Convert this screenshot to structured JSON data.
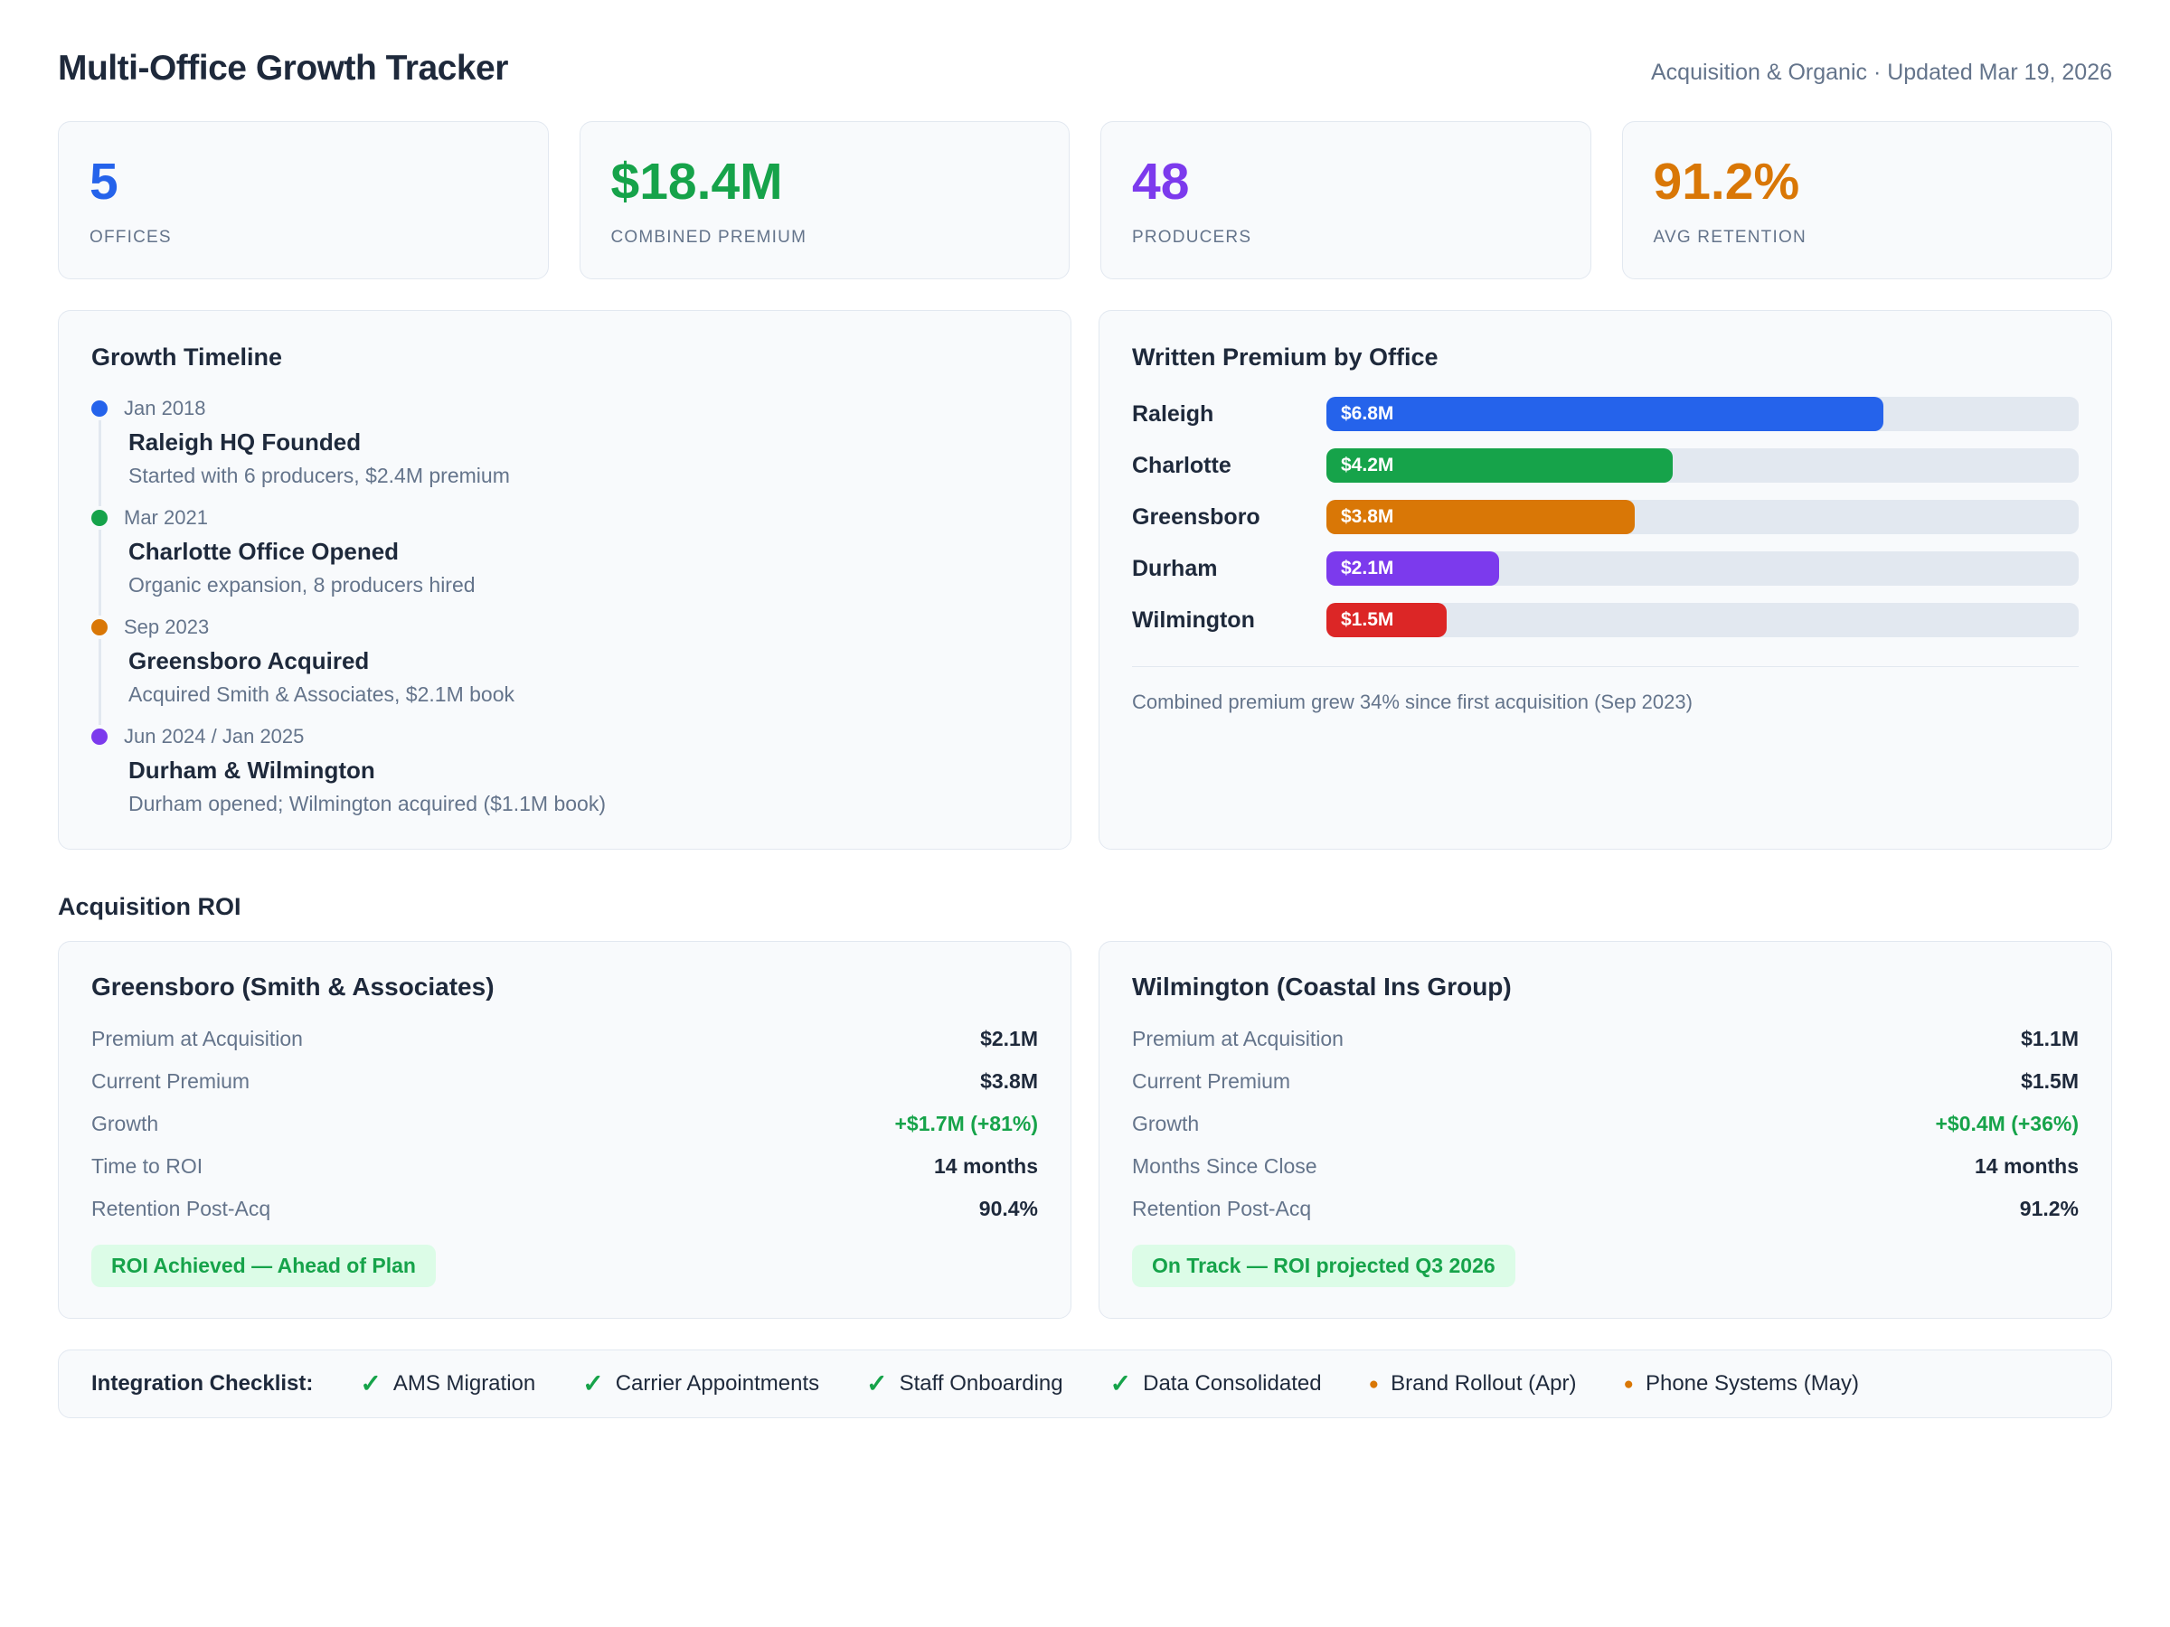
{
  "header": {
    "title": "Multi-Office Growth Tracker",
    "subtitle": "Acquisition & Organic · Updated Mar 19, 2026"
  },
  "kpis": [
    {
      "value": "5",
      "label": "OFFICES",
      "color": "#2563eb"
    },
    {
      "value": "$18.4M",
      "label": "COMBINED PREMIUM",
      "color": "#16a34a"
    },
    {
      "value": "48",
      "label": "PRODUCERS",
      "color": "#7c3aed"
    },
    {
      "value": "91.2%",
      "label": "AVG RETENTION",
      "color": "#d97706"
    }
  ],
  "timeline": {
    "title": "Growth Timeline",
    "items": [
      {
        "date": "Jan 2018",
        "title": "Raleigh HQ Founded",
        "desc": "Started with 6 producers, $2.4M premium",
        "color": "#2563eb"
      },
      {
        "date": "Mar 2021",
        "title": "Charlotte Office Opened",
        "desc": "Organic expansion, 8 producers hired",
        "color": "#16a34a"
      },
      {
        "date": "Sep 2023",
        "title": "Greensboro Acquired",
        "desc": "Acquired Smith & Associates, $2.1M book",
        "color": "#d97706"
      },
      {
        "date": "Jun 2024 / Jan 2025",
        "title": "Durham & Wilmington",
        "desc": "Durham opened; Wilmington acquired ($1.1M book)",
        "color": "#7c3aed"
      }
    ]
  },
  "chart_data": {
    "type": "bar",
    "orientation": "horizontal",
    "title": "Written Premium by Office",
    "unit": "USD millions",
    "categories": [
      "Raleigh",
      "Charlotte",
      "Greensboro",
      "Durham",
      "Wilmington"
    ],
    "values": [
      6.8,
      4.2,
      3.8,
      2.1,
      1.5
    ],
    "xlim": [
      0,
      9.2
    ],
    "grid": false,
    "note": "Combined premium grew 34% since first acquisition (Sep 2023)",
    "bars": [
      {
        "office": "Raleigh",
        "value_label": "$6.8M",
        "color": "#2563eb",
        "width_pct": "74%"
      },
      {
        "office": "Charlotte",
        "value_label": "$4.2M",
        "color": "#16a34a",
        "width_pct": "46%"
      },
      {
        "office": "Greensboro",
        "value_label": "$3.8M",
        "color": "#d97706",
        "width_pct": "41%"
      },
      {
        "office": "Durham",
        "value_label": "$2.1M",
        "color": "#7c3aed",
        "width_pct": "23%"
      },
      {
        "office": "Wilmington",
        "value_label": "$1.5M",
        "color": "#dc2626",
        "width_pct": "16%"
      }
    ]
  },
  "roi": {
    "heading": "Acquisition ROI",
    "cards": [
      {
        "title": "Greensboro (Smith & Associates)",
        "rows": [
          {
            "label": "Premium at Acquisition",
            "value": "$2.1M"
          },
          {
            "label": "Current Premium",
            "value": "$3.8M"
          },
          {
            "label": "Growth",
            "value": "+$1.7M (+81%)"
          },
          {
            "label": "Time to ROI",
            "value": "14 months"
          },
          {
            "label": "Retention Post-Acq",
            "value": "90.4%"
          }
        ],
        "badge": "ROI Achieved — Ahead of Plan"
      },
      {
        "title": "Wilmington (Coastal Ins Group)",
        "rows": [
          {
            "label": "Premium at Acquisition",
            "value": "$1.1M"
          },
          {
            "label": "Current Premium",
            "value": "$1.5M"
          },
          {
            "label": "Growth",
            "value": "+$0.4M (+36%)"
          },
          {
            "label": "Months Since Close",
            "value": "14 months"
          },
          {
            "label": "Retention Post-Acq",
            "value": "91.2%"
          }
        ],
        "badge": "On Track — ROI projected Q3 2026"
      }
    ]
  },
  "checklist": {
    "heading": "Integration Checklist:",
    "items": [
      {
        "icon": "✓",
        "label": "AMS Migration",
        "color": "#16a34a",
        "status": "done"
      },
      {
        "icon": "✓",
        "label": "Carrier Appointments",
        "color": "#16a34a",
        "status": "done"
      },
      {
        "icon": "✓",
        "label": "Staff Onboarding",
        "color": "#16a34a",
        "status": "done"
      },
      {
        "icon": "✓",
        "label": "Data Consolidated",
        "color": "#16a34a",
        "status": "done"
      },
      {
        "icon": "●",
        "label": "Brand Rollout (Apr)",
        "color": "#d97706",
        "status": "pending"
      },
      {
        "icon": "●",
        "label": "Phone Systems (May)",
        "color": "#d97706",
        "status": "pending"
      }
    ]
  }
}
